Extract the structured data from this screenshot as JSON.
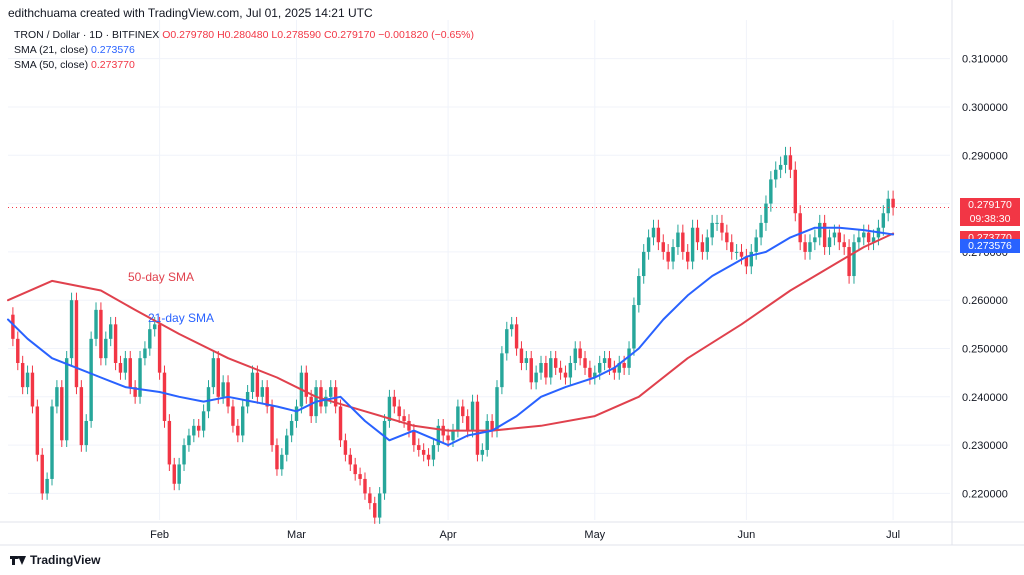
{
  "header": {
    "credit": "edithchuama created with TradingView.com, Jul 01, 2025 14:21 UTC"
  },
  "legend": {
    "symbol": "TRON / Dollar · 1D · BITFINEX",
    "open": "O0.279780",
    "high": "H0.280480",
    "low": "L0.278590",
    "close": "C0.279170",
    "change": "−0.001820 (−0.65%)",
    "sma21_label": "SMA (21, close)",
    "sma21_value": "0.273576",
    "sma50_label": "SMA (50, close)",
    "sma50_value": "0.273770"
  },
  "badges": {
    "price": "0.279170",
    "countdown": "09:38:30",
    "sma50": "0.273770",
    "sma21": "0.273576"
  },
  "footer": {
    "brand": "TradingView"
  },
  "colors": {
    "up": "#26a69a",
    "down": "#f23645",
    "sma21": "#2962ff",
    "sma50": "#e0414d",
    "grid": "#f0f3fa"
  },
  "chart_data": {
    "type": "candlestick",
    "title": "",
    "annotations": [
      "50-day SMA",
      "21-day SMA"
    ],
    "ylim": [
      0.2145,
      0.318
    ],
    "y_ticks": [
      "0.310000",
      "0.300000",
      "0.290000",
      "0.280000",
      "0.270000",
      "0.260000",
      "0.250000",
      "0.240000",
      "0.230000",
      "0.220000"
    ],
    "y_tick_values": [
      0.31,
      0.3,
      0.29,
      0.28,
      0.27,
      0.26,
      0.25,
      0.24,
      0.23,
      0.22
    ],
    "x_ticks": [
      "Feb",
      "Mar",
      "Apr",
      "May",
      "Jun",
      "Jul"
    ],
    "x_tick_dates": [
      "2025-02-01",
      "2025-03-01",
      "2025-04-01",
      "2025-05-01",
      "2025-06-01",
      "2025-07-01"
    ],
    "x_range": [
      "2025-01-01",
      "2025-07-11"
    ],
    "close_series": [
      [
        "2025-01-01",
        0.257
      ],
      [
        "2025-01-02",
        0.252
      ],
      [
        "2025-01-03",
        0.247
      ],
      [
        "2025-01-04",
        0.242
      ],
      [
        "2025-01-05",
        0.245
      ],
      [
        "2025-01-06",
        0.238
      ],
      [
        "2025-01-07",
        0.228
      ],
      [
        "2025-01-08",
        0.22
      ],
      [
        "2025-01-09",
        0.223
      ],
      [
        "2025-01-10",
        0.238
      ],
      [
        "2025-01-11",
        0.242
      ],
      [
        "2025-01-12",
        0.231
      ],
      [
        "2025-01-13",
        0.248
      ],
      [
        "2025-01-14",
        0.26
      ],
      [
        "2025-01-15",
        0.242
      ],
      [
        "2025-01-16",
        0.23
      ],
      [
        "2025-01-17",
        0.235
      ],
      [
        "2025-01-18",
        0.252
      ],
      [
        "2025-01-19",
        0.258
      ],
      [
        "2025-01-20",
        0.248
      ],
      [
        "2025-01-21",
        0.252
      ],
      [
        "2025-01-22",
        0.255
      ],
      [
        "2025-01-23",
        0.247
      ],
      [
        "2025-01-24",
        0.245
      ],
      [
        "2025-01-25",
        0.248
      ],
      [
        "2025-01-26",
        0.242
      ],
      [
        "2025-01-27",
        0.24
      ],
      [
        "2025-01-28",
        0.248
      ],
      [
        "2025-01-29",
        0.25
      ],
      [
        "2025-01-30",
        0.254
      ],
      [
        "2025-01-31",
        0.255
      ],
      [
        "2025-02-01",
        0.245
      ],
      [
        "2025-02-02",
        0.235
      ],
      [
        "2025-02-03",
        0.226
      ],
      [
        "2025-02-04",
        0.222
      ],
      [
        "2025-02-05",
        0.226
      ],
      [
        "2025-02-06",
        0.23
      ],
      [
        "2025-02-07",
        0.232
      ],
      [
        "2025-02-08",
        0.234
      ],
      [
        "2025-02-09",
        0.233
      ],
      [
        "2025-02-10",
        0.237
      ],
      [
        "2025-02-11",
        0.242
      ],
      [
        "2025-02-12",
        0.248
      ],
      [
        "2025-02-13",
        0.24
      ],
      [
        "2025-02-14",
        0.243
      ],
      [
        "2025-02-15",
        0.238
      ],
      [
        "2025-02-16",
        0.234
      ],
      [
        "2025-02-17",
        0.232
      ],
      [
        "2025-02-18",
        0.238
      ],
      [
        "2025-02-19",
        0.241
      ],
      [
        "2025-02-20",
        0.245
      ],
      [
        "2025-02-21",
        0.24
      ],
      [
        "2025-02-22",
        0.242
      ],
      [
        "2025-02-23",
        0.238
      ],
      [
        "2025-02-24",
        0.23
      ],
      [
        "2025-02-25",
        0.225
      ],
      [
        "2025-02-26",
        0.228
      ],
      [
        "2025-02-27",
        0.232
      ],
      [
        "2025-02-28",
        0.235
      ],
      [
        "2025-03-01",
        0.238
      ],
      [
        "2025-03-02",
        0.245
      ],
      [
        "2025-03-03",
        0.24
      ],
      [
        "2025-03-04",
        0.236
      ],
      [
        "2025-03-05",
        0.242
      ],
      [
        "2025-03-06",
        0.238
      ],
      [
        "2025-03-07",
        0.24
      ],
      [
        "2025-03-08",
        0.242
      ],
      [
        "2025-03-09",
        0.238
      ],
      [
        "2025-03-10",
        0.231
      ],
      [
        "2025-03-11",
        0.228
      ],
      [
        "2025-03-12",
        0.226
      ],
      [
        "2025-03-13",
        0.224
      ],
      [
        "2025-03-14",
        0.223
      ],
      [
        "2025-03-15",
        0.22
      ],
      [
        "2025-03-16",
        0.218
      ],
      [
        "2025-03-17",
        0.215
      ],
      [
        "2025-03-18",
        0.22
      ],
      [
        "2025-03-19",
        0.235
      ],
      [
        "2025-03-20",
        0.24
      ],
      [
        "2025-03-21",
        0.238
      ],
      [
        "2025-03-22",
        0.236
      ],
      [
        "2025-03-23",
        0.235
      ],
      [
        "2025-03-24",
        0.233
      ],
      [
        "2025-03-25",
        0.23
      ],
      [
        "2025-03-26",
        0.229
      ],
      [
        "2025-03-27",
        0.228
      ],
      [
        "2025-03-28",
        0.227
      ],
      [
        "2025-03-29",
        0.23
      ],
      [
        "2025-03-30",
        0.234
      ],
      [
        "2025-03-31",
        0.232
      ],
      [
        "2025-04-01",
        0.231
      ],
      [
        "2025-04-02",
        0.233
      ],
      [
        "2025-04-03",
        0.238
      ],
      [
        "2025-04-04",
        0.236
      ],
      [
        "2025-04-05",
        0.233
      ],
      [
        "2025-04-06",
        0.239
      ],
      [
        "2025-04-07",
        0.228
      ],
      [
        "2025-04-08",
        0.229
      ],
      [
        "2025-04-09",
        0.235
      ],
      [
        "2025-04-10",
        0.233
      ],
      [
        "2025-04-11",
        0.242
      ],
      [
        "2025-04-12",
        0.249
      ],
      [
        "2025-04-13",
        0.254
      ],
      [
        "2025-04-14",
        0.255
      ],
      [
        "2025-04-15",
        0.25
      ],
      [
        "2025-04-16",
        0.247
      ],
      [
        "2025-04-17",
        0.248
      ],
      [
        "2025-04-18",
        0.243
      ],
      [
        "2025-04-19",
        0.245
      ],
      [
        "2025-04-20",
        0.247
      ],
      [
        "2025-04-21",
        0.244
      ],
      [
        "2025-04-22",
        0.248
      ],
      [
        "2025-04-23",
        0.246
      ],
      [
        "2025-04-24",
        0.245
      ],
      [
        "2025-04-25",
        0.244
      ],
      [
        "2025-04-26",
        0.247
      ],
      [
        "2025-04-27",
        0.25
      ],
      [
        "2025-04-28",
        0.248
      ],
      [
        "2025-04-29",
        0.246
      ],
      [
        "2025-04-30",
        0.244
      ],
      [
        "2025-05-01",
        0.245
      ],
      [
        "2025-05-02",
        0.247
      ],
      [
        "2025-05-03",
        0.248
      ],
      [
        "2025-05-04",
        0.246
      ],
      [
        "2025-05-05",
        0.245
      ],
      [
        "2025-05-06",
        0.247
      ],
      [
        "2025-05-07",
        0.246
      ],
      [
        "2025-05-08",
        0.25
      ],
      [
        "2025-05-09",
        0.259
      ],
      [
        "2025-05-10",
        0.265
      ],
      [
        "2025-05-11",
        0.27
      ],
      [
        "2025-05-12",
        0.273
      ],
      [
        "2025-05-13",
        0.275
      ],
      [
        "2025-05-14",
        0.272
      ],
      [
        "2025-05-15",
        0.27
      ],
      [
        "2025-05-16",
        0.268
      ],
      [
        "2025-05-17",
        0.271
      ],
      [
        "2025-05-18",
        0.274
      ],
      [
        "2025-05-19",
        0.27
      ],
      [
        "2025-05-20",
        0.268
      ],
      [
        "2025-05-21",
        0.275
      ],
      [
        "2025-05-22",
        0.272
      ],
      [
        "2025-05-23",
        0.27
      ],
      [
        "2025-05-24",
        0.273
      ],
      [
        "2025-05-25",
        0.276
      ],
      [
        "2025-05-26",
        0.276
      ],
      [
        "2025-05-27",
        0.274
      ],
      [
        "2025-05-28",
        0.272
      ],
      [
        "2025-05-29",
        0.27
      ],
      [
        "2025-05-30",
        0.27
      ],
      [
        "2025-05-31",
        0.269
      ],
      [
        "2025-06-01",
        0.267
      ],
      [
        "2025-06-02",
        0.27
      ],
      [
        "2025-06-03",
        0.273
      ],
      [
        "2025-06-04",
        0.276
      ],
      [
        "2025-06-05",
        0.28
      ],
      [
        "2025-06-06",
        0.285
      ],
      [
        "2025-06-07",
        0.287
      ],
      [
        "2025-06-08",
        0.288
      ],
      [
        "2025-06-09",
        0.29
      ],
      [
        "2025-06-10",
        0.287
      ],
      [
        "2025-06-11",
        0.278
      ],
      [
        "2025-06-12",
        0.272
      ],
      [
        "2025-06-13",
        0.27
      ],
      [
        "2025-06-14",
        0.272
      ],
      [
        "2025-06-15",
        0.273
      ],
      [
        "2025-06-16",
        0.276
      ],
      [
        "2025-06-17",
        0.271
      ],
      [
        "2025-06-18",
        0.273
      ],
      [
        "2025-06-19",
        0.274
      ],
      [
        "2025-06-20",
        0.272
      ],
      [
        "2025-06-21",
        0.271
      ],
      [
        "2025-06-22",
        0.265
      ],
      [
        "2025-06-23",
        0.272
      ],
      [
        "2025-06-24",
        0.273
      ],
      [
        "2025-06-25",
        0.274
      ],
      [
        "2025-06-26",
        0.272
      ],
      [
        "2025-06-27",
        0.273
      ],
      [
        "2025-06-28",
        0.275
      ],
      [
        "2025-06-29",
        0.278
      ],
      [
        "2025-06-30",
        0.281
      ],
      [
        "2025-07-01",
        0.2792
      ]
    ],
    "sma21_series": [
      [
        "2025-01-01",
        0.256
      ],
      [
        "2025-01-05",
        0.252
      ],
      [
        "2025-01-10",
        0.248
      ],
      [
        "2025-01-15",
        0.246
      ],
      [
        "2025-01-20",
        0.244
      ],
      [
        "2025-01-25",
        0.242
      ],
      [
        "2025-02-01",
        0.241
      ],
      [
        "2025-02-05",
        0.24
      ],
      [
        "2025-02-10",
        0.239
      ],
      [
        "2025-02-15",
        0.24
      ],
      [
        "2025-02-20",
        0.239
      ],
      [
        "2025-02-25",
        0.238
      ],
      [
        "2025-03-01",
        0.237
      ],
      [
        "2025-03-05",
        0.239
      ],
      [
        "2025-03-10",
        0.24
      ],
      [
        "2025-03-15",
        0.235
      ],
      [
        "2025-03-20",
        0.231
      ],
      [
        "2025-03-25",
        0.233
      ],
      [
        "2025-04-01",
        0.23
      ],
      [
        "2025-04-05",
        0.232
      ],
      [
        "2025-04-10",
        0.233
      ],
      [
        "2025-04-15",
        0.236
      ],
      [
        "2025-04-20",
        0.24
      ],
      [
        "2025-04-25",
        0.242
      ],
      [
        "2025-05-01",
        0.244
      ],
      [
        "2025-05-05",
        0.246
      ],
      [
        "2025-05-10",
        0.25
      ],
      [
        "2025-05-15",
        0.256
      ],
      [
        "2025-05-20",
        0.261
      ],
      [
        "2025-05-25",
        0.265
      ],
      [
        "2025-06-01",
        0.269
      ],
      [
        "2025-06-05",
        0.27
      ],
      [
        "2025-06-10",
        0.273
      ],
      [
        "2025-06-15",
        0.275
      ],
      [
        "2025-06-20",
        0.275
      ],
      [
        "2025-06-25",
        0.2745
      ],
      [
        "2025-07-01",
        0.2736
      ]
    ],
    "sma50_series": [
      [
        "2025-01-01",
        0.26
      ],
      [
        "2025-01-10",
        0.264
      ],
      [
        "2025-01-20",
        0.262
      ],
      [
        "2025-01-27",
        0.258
      ],
      [
        "2025-02-05",
        0.253
      ],
      [
        "2025-02-15",
        0.248
      ],
      [
        "2025-02-25",
        0.244
      ],
      [
        "2025-03-05",
        0.24
      ],
      [
        "2025-03-15",
        0.237
      ],
      [
        "2025-03-25",
        0.234
      ],
      [
        "2025-04-01",
        0.233
      ],
      [
        "2025-04-10",
        0.233
      ],
      [
        "2025-04-20",
        0.234
      ],
      [
        "2025-05-01",
        0.236
      ],
      [
        "2025-05-10",
        0.24
      ],
      [
        "2025-05-20",
        0.248
      ],
      [
        "2025-05-31",
        0.255
      ],
      [
        "2025-06-10",
        0.262
      ],
      [
        "2025-06-20",
        0.268
      ],
      [
        "2025-06-25",
        0.271
      ],
      [
        "2025-07-01",
        0.2738
      ]
    ]
  }
}
